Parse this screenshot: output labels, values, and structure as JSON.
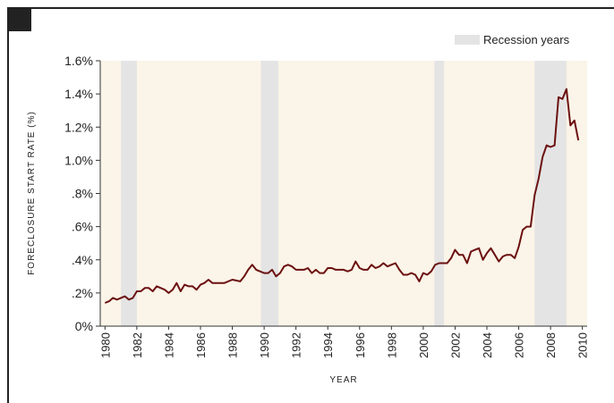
{
  "chart_data": {
    "type": "line",
    "ylabel": "FORECLOSURE START RATE (%)",
    "xlabel": "YEAR",
    "legend": "Recession years",
    "recession_color": "#e4e4e4",
    "recessions": [
      [
        1981.0,
        1982.0
      ],
      [
        1989.8,
        1990.9
      ],
      [
        2000.7,
        2001.3
      ],
      [
        2007.0,
        2009.0
      ]
    ],
    "xlim": [
      1979.7,
      2010.3
    ],
    "ylim": [
      0,
      1.6
    ],
    "xticks": [
      1980,
      1982,
      1984,
      1986,
      1988,
      1990,
      1992,
      1994,
      1996,
      1998,
      2000,
      2002,
      2004,
      2006,
      2008,
      2010
    ],
    "yticks": [
      {
        "value": 0,
        "label": "0%"
      },
      {
        "value": 0.2,
        "label": ".2%"
      },
      {
        "value": 0.4,
        "label": ".4%"
      },
      {
        "value": 0.6,
        "label": ".6%"
      },
      {
        "value": 0.8,
        "label": ".8%"
      },
      {
        "value": 1.0,
        "label": "1.0%"
      },
      {
        "value": 1.2,
        "label": "1.2%"
      },
      {
        "value": 1.4,
        "label": "1.4%"
      },
      {
        "value": 1.6,
        "label": "1.6%"
      }
    ],
    "series": [
      {
        "color": "#6b1010",
        "x": [
          1980,
          1980.25,
          1980.5,
          1980.75,
          1981,
          1981.25,
          1981.5,
          1981.75,
          1982,
          1982.25,
          1982.5,
          1982.75,
          1983,
          1983.25,
          1983.5,
          1983.75,
          1984,
          1984.25,
          1984.5,
          1984.75,
          1985,
          1985.25,
          1985.5,
          1985.75,
          1986,
          1986.25,
          1986.5,
          1986.75,
          1987,
          1987.5,
          1988,
          1988.5,
          1988.75,
          1989,
          1989.25,
          1989.5,
          1990,
          1990.25,
          1990.5,
          1990.75,
          1991,
          1991.25,
          1991.5,
          1991.75,
          1992,
          1992.5,
          1992.75,
          1993,
          1993.25,
          1993.5,
          1993.75,
          1994,
          1994.25,
          1994.5,
          1995,
          1995.25,
          1995.5,
          1995.75,
          1996,
          1996.25,
          1996.5,
          1996.75,
          1997,
          1997.25,
          1997.5,
          1997.75,
          1998,
          1998.25,
          1998.5,
          1998.75,
          1999,
          1999.25,
          1999.5,
          1999.75,
          2000,
          2000.25,
          2000.5,
          2000.75,
          2001,
          2001.25,
          2001.5,
          2001.75,
          2002,
          2002.25,
          2002.5,
          2002.75,
          2003,
          2003.25,
          2003.5,
          2003.75,
          2004,
          2004.25,
          2004.5,
          2004.75,
          2005,
          2005.25,
          2005.5,
          2005.75,
          2006,
          2006.25,
          2006.5,
          2006.75,
          2007,
          2007.25,
          2007.5,
          2007.75,
          2008,
          2008.25,
          2008.5,
          2008.75,
          2009,
          2009.25,
          2009.5,
          2009.75
        ],
        "values": [
          0.14,
          0.15,
          0.17,
          0.16,
          0.17,
          0.18,
          0.16,
          0.17,
          0.21,
          0.21,
          0.23,
          0.23,
          0.21,
          0.24,
          0.23,
          0.22,
          0.2,
          0.22,
          0.26,
          0.21,
          0.25,
          0.24,
          0.24,
          0.22,
          0.25,
          0.26,
          0.28,
          0.26,
          0.26,
          0.26,
          0.28,
          0.27,
          0.3,
          0.34,
          0.37,
          0.34,
          0.32,
          0.32,
          0.34,
          0.3,
          0.32,
          0.36,
          0.37,
          0.36,
          0.34,
          0.34,
          0.35,
          0.32,
          0.34,
          0.32,
          0.32,
          0.35,
          0.35,
          0.34,
          0.34,
          0.33,
          0.34,
          0.39,
          0.35,
          0.34,
          0.34,
          0.37,
          0.35,
          0.36,
          0.38,
          0.36,
          0.37,
          0.38,
          0.34,
          0.31,
          0.31,
          0.32,
          0.31,
          0.27,
          0.32,
          0.31,
          0.33,
          0.37,
          0.38,
          0.38,
          0.38,
          0.41,
          0.46,
          0.43,
          0.43,
          0.38,
          0.45,
          0.46,
          0.47,
          0.4,
          0.44,
          0.47,
          0.43,
          0.39,
          0.42,
          0.43,
          0.43,
          0.41,
          0.48,
          0.58,
          0.6,
          0.6,
          0.79,
          0.89,
          1.02,
          1.09,
          1.08,
          1.09,
          1.38,
          1.37,
          1.43,
          1.21,
          1.24,
          1.12
        ]
      }
    ]
  }
}
